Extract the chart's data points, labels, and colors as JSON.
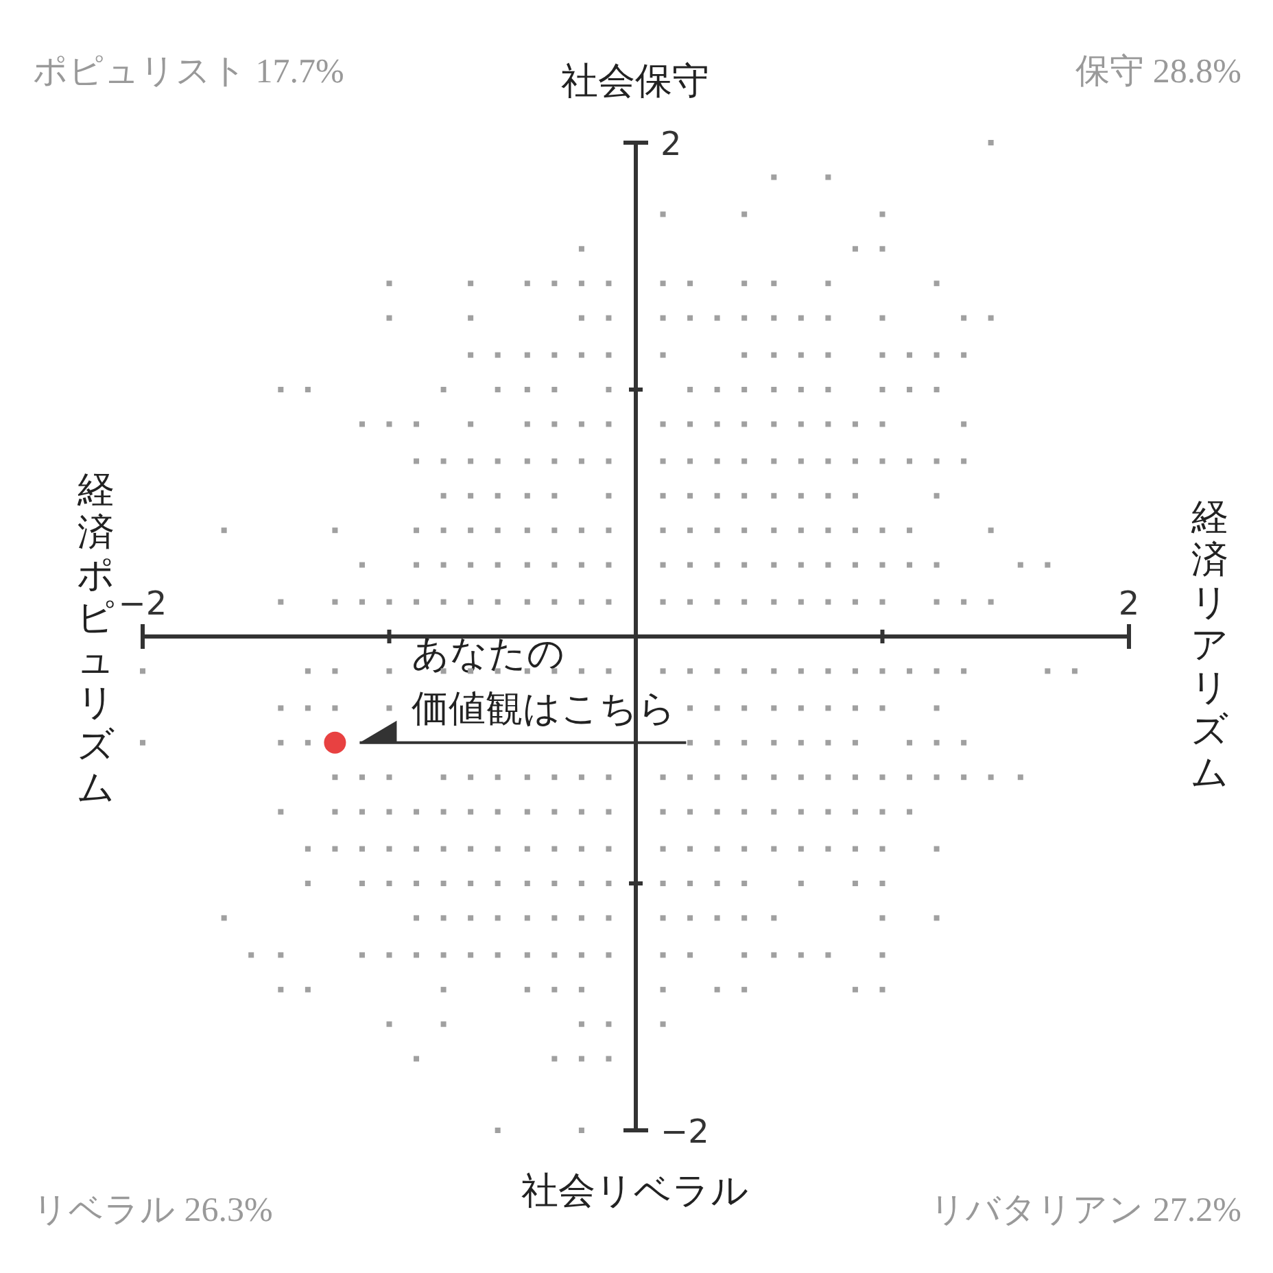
{
  "chart_data": {
    "type": "scatter",
    "marker": "square",
    "grid": false,
    "xlim": [
      -2,
      2
    ],
    "ylim": [
      -2,
      2
    ],
    "xticks": [
      {
        "value": -2,
        "label": "−2"
      },
      {
        "value": -1,
        "label": null
      },
      {
        "value": 1,
        "label": null
      },
      {
        "value": 2,
        "label": "2"
      }
    ],
    "yticks": [
      {
        "value": -2,
        "label": "−2"
      },
      {
        "value": -1,
        "label": null
      },
      {
        "value": 1,
        "label": null
      },
      {
        "value": 2,
        "label": "2"
      }
    ],
    "annotations": [
      "社会保守",
      "社会リベラル",
      "経済ポピュリズム",
      "経済リアリズム",
      "ポピュリスト 17.7%",
      "保守 28.8%",
      "リベラル  26.3%",
      "リバタリアン  27.2%",
      {
        "text": "あなたの",
        "x": -1.22,
        "y": -0.43
      },
      {
        "text": "価値観はこちら",
        "x": -1.22,
        "y": -0.43
      }
    ],
    "series": [
      {
        "color": "#a0a0a0",
        "x": [
          1.44
        ],
        "values": [
          2
        ]
      },
      {
        "color": "#a0a0a0",
        "x": [
          0.56,
          0.78
        ],
        "values": [
          1.86,
          1.86
        ]
      },
      {
        "color": "#a0a0a0",
        "x": [
          0.11,
          0.44,
          1
        ],
        "values": [
          1.71,
          1.71,
          1.71
        ]
      },
      {
        "color": "#a0a0a0",
        "x": [
          -0.22,
          0.89,
          1
        ],
        "values": [
          1.57,
          1.57,
          1.57
        ]
      },
      {
        "color": "#a0a0a0",
        "x": [
          -1,
          -0.67,
          -0.44,
          -0.33,
          -0.22,
          -0.11,
          0.11,
          0.22,
          0.44,
          0.56,
          0.78,
          1.22
        ],
        "values": [
          1.43,
          1.43,
          1.43,
          1.43,
          1.43,
          1.43,
          1.43,
          1.43,
          1.43,
          1.43,
          1.43,
          1.43
        ]
      },
      {
        "color": "#a0a0a0",
        "x": [
          -1,
          -0.67,
          -0.22,
          -0.11,
          0.11,
          0.22,
          0.33,
          0.44,
          0.56,
          0.67,
          0.78,
          1,
          1.33,
          1.44
        ],
        "values": [
          1.29,
          1.29,
          1.29,
          1.29,
          1.29,
          1.29,
          1.29,
          1.29,
          1.29,
          1.29,
          1.29,
          1.29,
          1.29,
          1.29
        ]
      },
      {
        "color": "#a0a0a0",
        "x": [
          -0.67,
          -0.56,
          -0.44,
          -0.33,
          -0.22,
          -0.11,
          0.11,
          0.44,
          0.56,
          0.67,
          0.78,
          1,
          1.11,
          1.22,
          1.33
        ],
        "values": [
          1.14,
          1.14,
          1.14,
          1.14,
          1.14,
          1.14,
          1.14,
          1.14,
          1.14,
          1.14,
          1.14,
          1.14,
          1.14,
          1.14,
          1.14
        ]
      },
      {
        "color": "#a0a0a0",
        "x": [
          -1.44,
          -1.33,
          -0.78,
          -0.56,
          -0.44,
          -0.33,
          -0.11,
          0.22,
          0.33,
          0.44,
          0.56,
          0.67,
          0.78,
          1,
          1.11,
          1.22
        ],
        "values": [
          1,
          1,
          1,
          1,
          1,
          1,
          1,
          1,
          1,
          1,
          1,
          1,
          1,
          1,
          1,
          1
        ]
      },
      {
        "color": "#a0a0a0",
        "x": [
          -1.11,
          -1,
          -0.89,
          -0.67,
          -0.44,
          -0.33,
          -0.22,
          -0.11,
          0.11,
          0.22,
          0.33,
          0.44,
          0.56,
          0.67,
          0.78,
          0.89,
          1,
          1.33
        ],
        "values": [
          0.86,
          0.86,
          0.86,
          0.86,
          0.86,
          0.86,
          0.86,
          0.86,
          0.86,
          0.86,
          0.86,
          0.86,
          0.86,
          0.86,
          0.86,
          0.86,
          0.86,
          0.86
        ]
      },
      {
        "color": "#a0a0a0",
        "x": [
          -0.89,
          -0.78,
          -0.67,
          -0.56,
          -0.44,
          -0.33,
          -0.22,
          -0.11,
          0.11,
          0.22,
          0.33,
          0.44,
          0.56,
          0.67,
          0.78,
          0.89,
          1,
          1.11,
          1.22,
          1.33
        ],
        "values": [
          0.71,
          0.71,
          0.71,
          0.71,
          0.71,
          0.71,
          0.71,
          0.71,
          0.71,
          0.71,
          0.71,
          0.71,
          0.71,
          0.71,
          0.71,
          0.71,
          0.71,
          0.71,
          0.71,
          0.71
        ]
      },
      {
        "color": "#a0a0a0",
        "x": [
          -0.78,
          -0.67,
          -0.56,
          -0.44,
          -0.33,
          -0.11,
          0.11,
          0.22,
          0.33,
          0.44,
          0.56,
          0.67,
          0.78,
          0.89,
          1.22
        ],
        "values": [
          0.57,
          0.57,
          0.57,
          0.57,
          0.57,
          0.57,
          0.57,
          0.57,
          0.57,
          0.57,
          0.57,
          0.57,
          0.57,
          0.57,
          0.57
        ]
      },
      {
        "color": "#a0a0a0",
        "x": [
          -1.67,
          -1.22,
          -0.89,
          -0.78,
          -0.67,
          -0.56,
          -0.44,
          -0.33,
          -0.22,
          -0.11,
          0.11,
          0.22,
          0.33,
          0.44,
          0.56,
          0.67,
          0.78,
          0.89,
          1,
          1.11,
          1.44
        ],
        "values": [
          0.43,
          0.43,
          0.43,
          0.43,
          0.43,
          0.43,
          0.43,
          0.43,
          0.43,
          0.43,
          0.43,
          0.43,
          0.43,
          0.43,
          0.43,
          0.43,
          0.43,
          0.43,
          0.43,
          0.43,
          0.43
        ]
      },
      {
        "color": "#a0a0a0",
        "x": [
          -1.11,
          -0.89,
          -0.78,
          -0.67,
          -0.56,
          -0.44,
          -0.33,
          -0.22,
          -0.11,
          0.11,
          0.22,
          0.33,
          0.44,
          0.56,
          0.67,
          0.78,
          0.89,
          1,
          1.11,
          1.22,
          1.56,
          1.67
        ],
        "values": [
          0.29,
          0.29,
          0.29,
          0.29,
          0.29,
          0.29,
          0.29,
          0.29,
          0.29,
          0.29,
          0.29,
          0.29,
          0.29,
          0.29,
          0.29,
          0.29,
          0.29,
          0.29,
          0.29,
          0.29,
          0.29,
          0.29
        ]
      },
      {
        "color": "#a0a0a0",
        "x": [
          -1.44,
          -1.22,
          -1.11,
          -1,
          -0.89,
          -0.78,
          -0.67,
          -0.56,
          -0.44,
          -0.33,
          -0.22,
          -0.11,
          0.11,
          0.22,
          0.33,
          0.44,
          0.56,
          0.67,
          0.78,
          0.89,
          1,
          1.22,
          1.33,
          1.44
        ],
        "values": [
          0.14,
          0.14,
          0.14,
          0.14,
          0.14,
          0.14,
          0.14,
          0.14,
          0.14,
          0.14,
          0.14,
          0.14,
          0.14,
          0.14,
          0.14,
          0.14,
          0.14,
          0.14,
          0.14,
          0.14,
          0.14,
          0.14,
          0.14,
          0.14
        ]
      },
      {
        "color": "#a0a0a0",
        "x": [
          -2,
          -1.33,
          -1.22,
          -1,
          -0.78,
          -0.67,
          -0.56,
          -0.44,
          -0.33,
          -0.22,
          -0.11,
          0.11,
          0.22,
          0.33,
          0.44,
          0.56,
          0.67,
          0.78,
          0.89,
          1,
          1.11,
          1.22,
          1.33,
          1.67,
          1.78
        ],
        "values": [
          -0.14,
          -0.14,
          -0.14,
          -0.14,
          -0.14,
          -0.14,
          -0.14,
          -0.14,
          -0.14,
          -0.14,
          -0.14,
          -0.14,
          -0.14,
          -0.14,
          -0.14,
          -0.14,
          -0.14,
          -0.14,
          -0.14,
          -0.14,
          -0.14,
          -0.14,
          -0.14,
          -0.14,
          -0.14
        ]
      },
      {
        "color": "#a0a0a0",
        "x": [
          -1.44,
          -1.33,
          -1.22,
          -1,
          0.22,
          0.33,
          0.44,
          0.56,
          0.67,
          0.78,
          0.89,
          1,
          1.22
        ],
        "values": [
          -0.29,
          -0.29,
          -0.29,
          -0.29,
          -0.29,
          -0.29,
          -0.29,
          -0.29,
          -0.29,
          -0.29,
          -0.29,
          -0.29,
          -0.29
        ]
      },
      {
        "color": "#a0a0a0",
        "x": [
          -2,
          -1.44,
          -1.33,
          0.22,
          0.33,
          0.44,
          0.56,
          0.67,
          0.78,
          0.89,
          1.11,
          1.22,
          1.33
        ],
        "values": [
          -0.43,
          -0.43,
          -0.43,
          -0.43,
          -0.43,
          -0.43,
          -0.43,
          -0.43,
          -0.43,
          -0.43,
          -0.43,
          -0.43,
          -0.43
        ]
      },
      {
        "color": "#a0a0a0",
        "x": [
          -1.22,
          -1.11,
          -1,
          -0.78,
          -0.67,
          -0.56,
          -0.44,
          -0.33,
          -0.22,
          -0.11,
          0.11,
          0.22,
          0.33,
          0.44,
          0.56,
          0.67,
          0.78,
          0.89,
          1,
          1.11,
          1.22,
          1.33,
          1.44,
          1.56
        ],
        "values": [
          -0.57,
          -0.57,
          -0.57,
          -0.57,
          -0.57,
          -0.57,
          -0.57,
          -0.57,
          -0.57,
          -0.57,
          -0.57,
          -0.57,
          -0.57,
          -0.57,
          -0.57,
          -0.57,
          -0.57,
          -0.57,
          -0.57,
          -0.57,
          -0.57,
          -0.57,
          -0.57,
          -0.57
        ]
      },
      {
        "color": "#a0a0a0",
        "x": [
          -1.44,
          -1.22,
          -1.11,
          -1,
          -0.89,
          -0.78,
          -0.67,
          -0.56,
          -0.44,
          -0.33,
          -0.22,
          -0.11,
          0.11,
          0.22,
          0.33,
          0.44,
          0.56,
          0.67,
          0.78,
          0.89,
          1,
          1.11
        ],
        "values": [
          -0.71,
          -0.71,
          -0.71,
          -0.71,
          -0.71,
          -0.71,
          -0.71,
          -0.71,
          -0.71,
          -0.71,
          -0.71,
          -0.71,
          -0.71,
          -0.71,
          -0.71,
          -0.71,
          -0.71,
          -0.71,
          -0.71,
          -0.71,
          -0.71,
          -0.71
        ]
      },
      {
        "color": "#a0a0a0",
        "x": [
          -1.33,
          -1.22,
          -1.11,
          -1,
          -0.89,
          -0.78,
          -0.67,
          -0.56,
          -0.44,
          -0.33,
          -0.22,
          -0.11,
          0.11,
          0.22,
          0.33,
          0.44,
          0.56,
          0.67,
          0.78,
          0.89,
          1,
          1.22
        ],
        "values": [
          -0.86,
          -0.86,
          -0.86,
          -0.86,
          -0.86,
          -0.86,
          -0.86,
          -0.86,
          -0.86,
          -0.86,
          -0.86,
          -0.86,
          -0.86,
          -0.86,
          -0.86,
          -0.86,
          -0.86,
          -0.86,
          -0.86,
          -0.86,
          -0.86,
          -0.86
        ]
      },
      {
        "color": "#a0a0a0",
        "x": [
          -1.33,
          -1.11,
          -1,
          -0.89,
          -0.78,
          -0.67,
          -0.56,
          -0.44,
          -0.33,
          -0.22,
          -0.11,
          0.11,
          0.22,
          0.33,
          0.44,
          0.67,
          0.89,
          1
        ],
        "values": [
          -1,
          -1,
          -1,
          -1,
          -1,
          -1,
          -1,
          -1,
          -1,
          -1,
          -1,
          -1,
          -1,
          -1,
          -1,
          -1,
          -1,
          -1
        ]
      },
      {
        "color": "#a0a0a0",
        "x": [
          -1.67,
          -0.89,
          -0.78,
          -0.67,
          -0.56,
          -0.44,
          -0.33,
          -0.22,
          -0.11,
          0.11,
          0.22,
          0.33,
          0.44,
          0.56,
          1,
          1.22
        ],
        "values": [
          -1.14,
          -1.14,
          -1.14,
          -1.14,
          -1.14,
          -1.14,
          -1.14,
          -1.14,
          -1.14,
          -1.14,
          -1.14,
          -1.14,
          -1.14,
          -1.14,
          -1.14,
          -1.14
        ]
      },
      {
        "color": "#a0a0a0",
        "x": [
          -1.56,
          -1.44,
          -1.11,
          -1,
          -0.89,
          -0.78,
          -0.67,
          -0.56,
          -0.44,
          -0.33,
          -0.22,
          -0.11,
          0.11,
          0.22,
          0.44,
          0.56,
          0.67,
          0.78,
          1
        ],
        "values": [
          -1.29,
          -1.29,
          -1.29,
          -1.29,
          -1.29,
          -1.29,
          -1.29,
          -1.29,
          -1.29,
          -1.29,
          -1.29,
          -1.29,
          -1.29,
          -1.29,
          -1.29,
          -1.29,
          -1.29,
          -1.29,
          -1.29
        ]
      },
      {
        "color": "#a0a0a0",
        "x": [
          -1.44,
          -1.33,
          -0.78,
          -0.44,
          -0.33,
          -0.22,
          0.11,
          0.33,
          0.44,
          0.89,
          1
        ],
        "values": [
          -1.43,
          -1.43,
          -1.43,
          -1.43,
          -1.43,
          -1.43,
          -1.43,
          -1.43,
          -1.43,
          -1.43,
          -1.43
        ]
      },
      {
        "color": "#a0a0a0",
        "x": [
          -1,
          -0.78,
          -0.22,
          -0.11,
          0.11
        ],
        "values": [
          -1.57,
          -1.57,
          -1.57,
          -1.57,
          -1.57
        ]
      },
      {
        "color": "#a0a0a0",
        "x": [
          -0.89,
          -0.33,
          -0.22,
          -0.11
        ],
        "values": [
          -1.71,
          -1.71,
          -1.71,
          -1.71
        ]
      },
      {
        "color": "#a0a0a0",
        "x": [
          -0.56,
          -0.22
        ],
        "values": [
          -2,
          -2
        ]
      },
      {
        "color": "#e84141",
        "marker": "circle",
        "x": [
          -1.22
        ],
        "values": [
          -0.43
        ]
      }
    ]
  }
}
